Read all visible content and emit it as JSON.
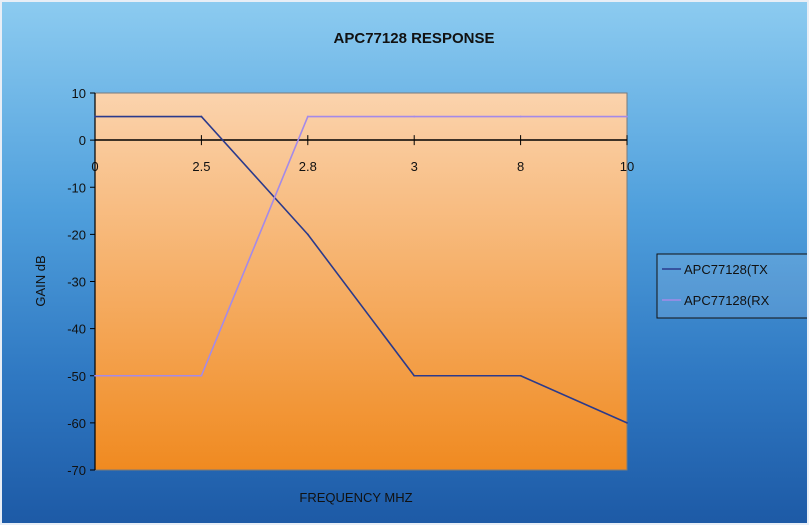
{
  "chart_data": {
    "type": "line",
    "title": "APC77128 RESPONSE",
    "xlabel": "FREQUENCY MHZ",
    "ylabel": "GAIN dB",
    "categories": [
      "0",
      "2.5",
      "2.8",
      "3",
      "8",
      "10"
    ],
    "ylim": [
      -70,
      10
    ],
    "yticks": [
      10,
      0,
      -10,
      -20,
      -30,
      -40,
      -50,
      -60,
      -70
    ],
    "series": [
      {
        "name": "APC77128(TX",
        "color": "#2b3a8c",
        "values": [
          5,
          5,
          -20,
          -50,
          -50,
          -60
        ]
      },
      {
        "name": "APC77128(RX",
        "color": "#a48ae8",
        "values": [
          -50,
          -50,
          5,
          5,
          5,
          5
        ]
      }
    ],
    "grid": false,
    "legend": "right",
    "colors": {
      "plot_top": "#fbd3ad",
      "plot_bottom": "#f08a20",
      "axis": "#000000"
    }
  }
}
